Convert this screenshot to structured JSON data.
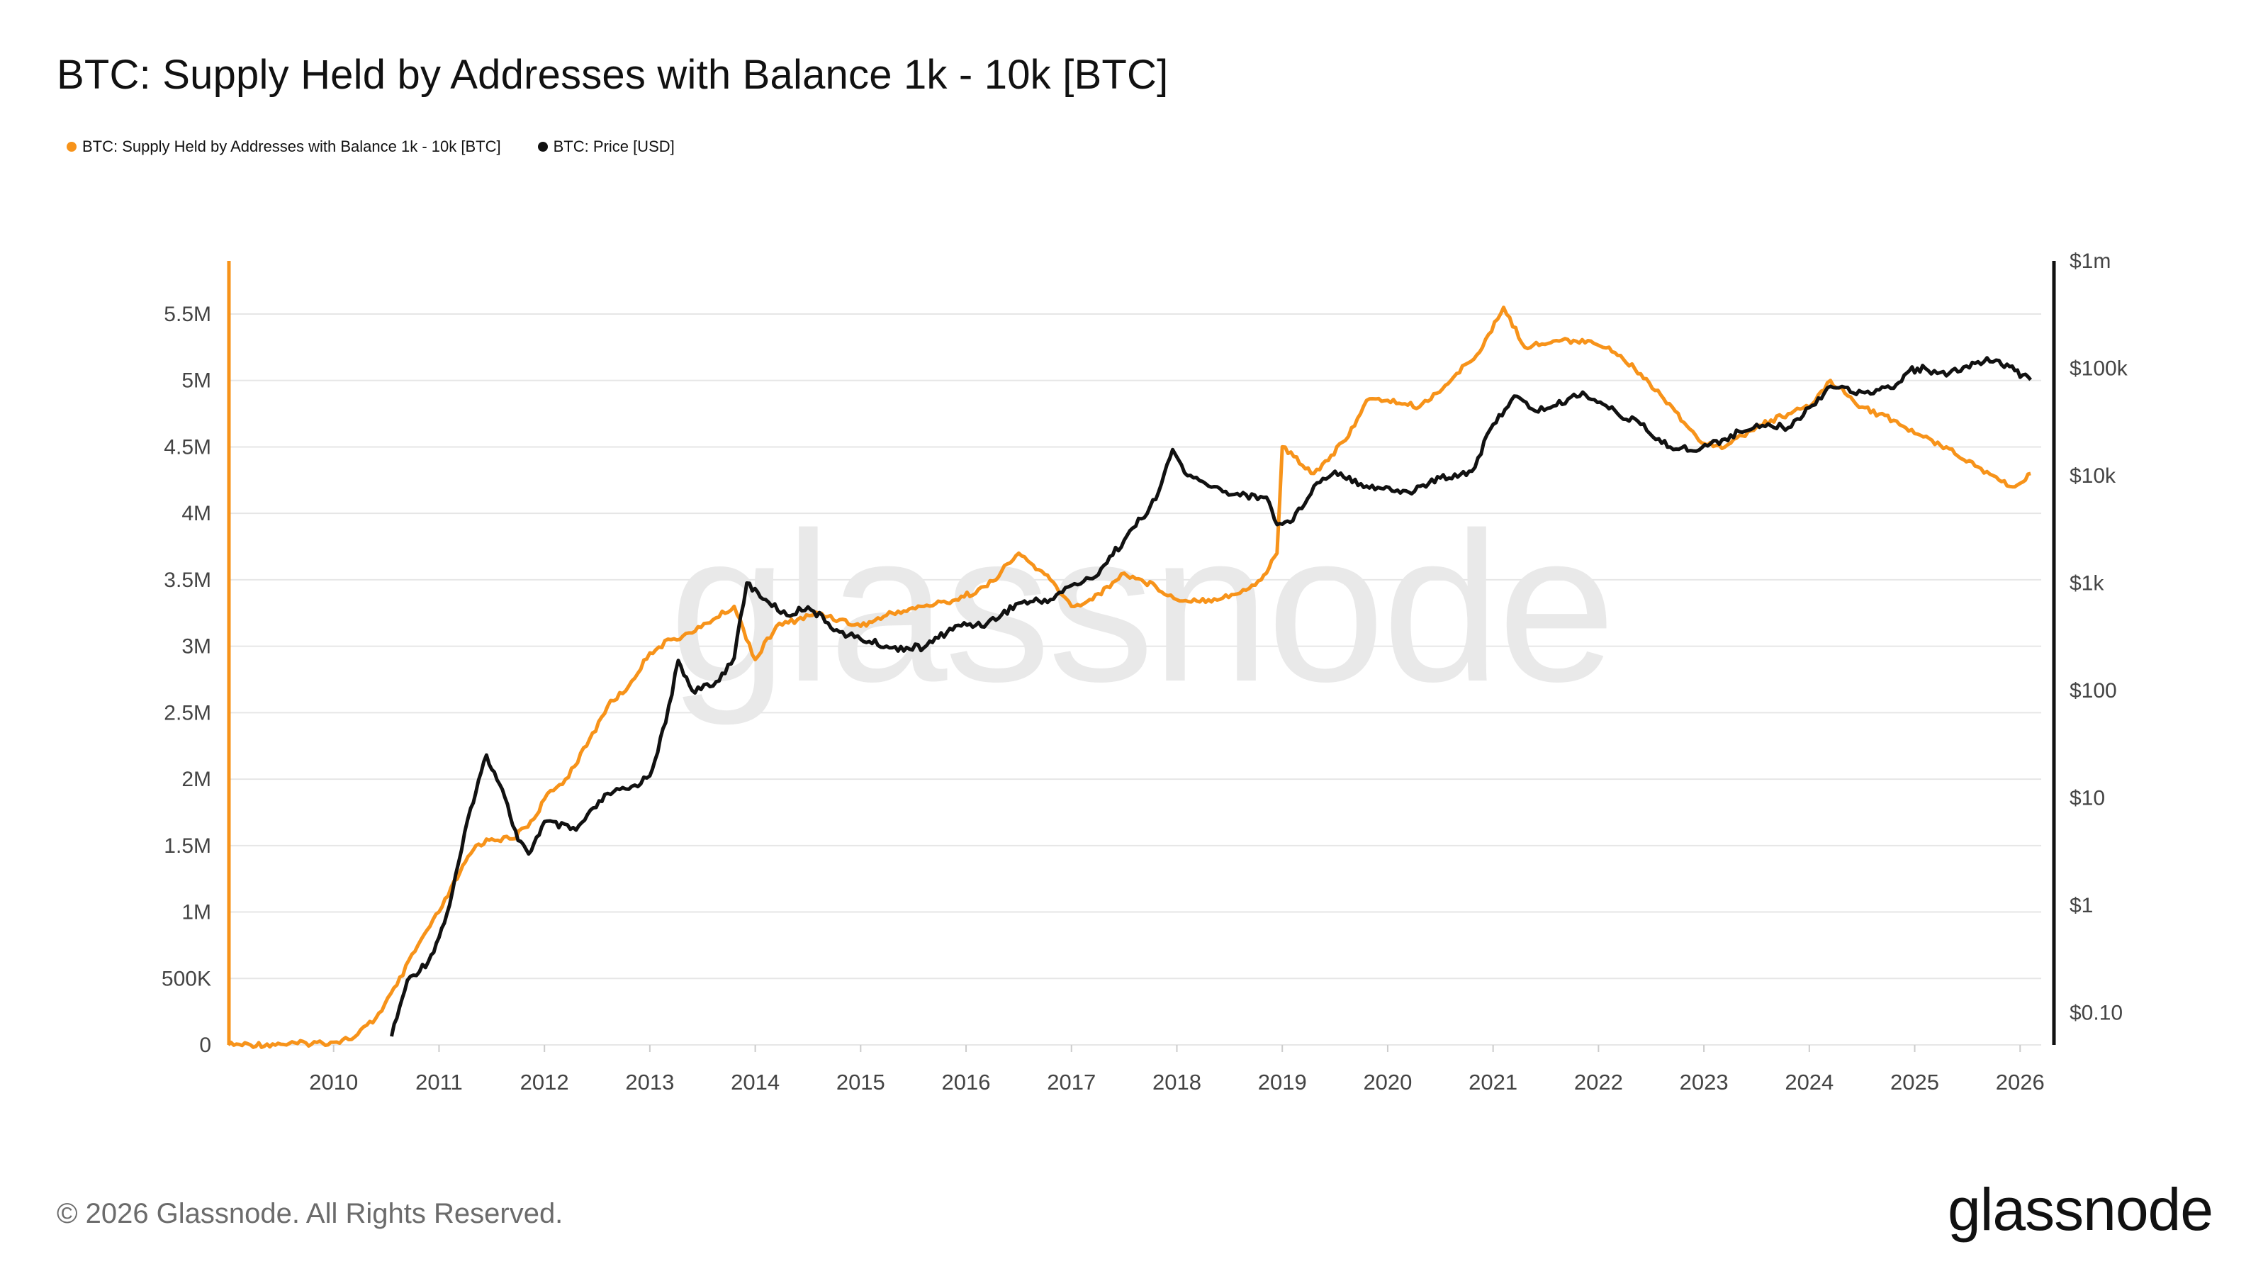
{
  "header": {
    "title": "BTC: Supply Held by Addresses with Balance 1k - 10k [BTC]"
  },
  "legend": {
    "items": [
      {
        "label": "BTC: Supply Held by Addresses with Balance 1k - 10k [BTC]",
        "color": "#f7931a"
      },
      {
        "label": "BTC: Price [USD]",
        "color": "#111111"
      }
    ]
  },
  "watermark": "glassnode",
  "footer": {
    "copyright": "© 2026 Glassnode. All Rights Reserved.",
    "brand": "glassnode"
  },
  "chart_data": {
    "type": "line",
    "title": "BTC: Supply Held by Addresses with Balance 1k - 10k [BTC]",
    "grid": true,
    "legend_position": "top-left",
    "x_ticks": [
      "2010",
      "2011",
      "2012",
      "2013",
      "2014",
      "2015",
      "2016",
      "2017",
      "2018",
      "2019",
      "2020",
      "2021",
      "2022",
      "2023",
      "2024",
      "2025",
      "2026"
    ],
    "x_range": [
      2009.0,
      2026.2
    ],
    "y_left": {
      "scale": "linear",
      "range": [
        0,
        5900000
      ],
      "ticks": [
        0,
        500000,
        1000000,
        1500000,
        2000000,
        2500000,
        3000000,
        3500000,
        4000000,
        4500000,
        5000000,
        5500000
      ],
      "tick_labels": [
        "0",
        "500K",
        "1M",
        "1.5M",
        "2M",
        "2.5M",
        "3M",
        "3.5M",
        "4M",
        "4.5M",
        "5M",
        "5.5M"
      ]
    },
    "y_right": {
      "scale": "log",
      "range": [
        0.05,
        1000000
      ],
      "ticks": [
        0.1,
        1,
        10,
        100,
        1000,
        10000,
        100000,
        1000000
      ],
      "tick_labels": [
        "$0.10",
        "$1",
        "$10",
        "$100",
        "$1k",
        "$10k",
        "$100k",
        "$1m"
      ]
    },
    "series": [
      {
        "name": "BTC: Supply Held by Addresses with Balance 1k - 10k [BTC]",
        "color": "#f7931a",
        "axis": "left",
        "x": [
          2009.0,
          2009.5,
          2010.0,
          2010.2,
          2010.4,
          2010.6,
          2010.8,
          2011.0,
          2011.2,
          2011.35,
          2011.5,
          2011.7,
          2011.9,
          2012.0,
          2012.2,
          2012.4,
          2012.6,
          2012.8,
          2013.0,
          2013.2,
          2013.4,
          2013.6,
          2013.8,
          2014.0,
          2014.2,
          2014.4,
          2014.6,
          2014.8,
          2015.0,
          2015.3,
          2015.6,
          2015.9,
          2016.2,
          2016.5,
          2016.8,
          2017.0,
          2017.2,
          2017.5,
          2017.8,
          2018.0,
          2018.3,
          2018.6,
          2018.8,
          2018.95,
          2019.0,
          2019.3,
          2019.6,
          2019.8,
          2020.0,
          2020.3,
          2020.6,
          2020.9,
          2021.1,
          2021.3,
          2021.6,
          2021.9,
          2022.1,
          2022.4,
          2022.7,
          2022.95,
          2023.2,
          2023.5,
          2023.8,
          2024.0,
          2024.2,
          2024.5,
          2024.8,
          2025.0,
          2025.3,
          2025.6,
          2025.8,
          2025.95,
          2026.05,
          2026.1
        ],
        "y": [
          0,
          5000,
          20000,
          60000,
          200000,
          450000,
          750000,
          1000000,
          1300000,
          1500000,
          1550000,
          1550000,
          1700000,
          1850000,
          2000000,
          2250000,
          2550000,
          2700000,
          2950000,
          3050000,
          3100000,
          3200000,
          3300000,
          2900000,
          3150000,
          3200000,
          3250000,
          3200000,
          3150000,
          3250000,
          3300000,
          3350000,
          3450000,
          3700000,
          3500000,
          3300000,
          3350000,
          3550000,
          3450000,
          3350000,
          3350000,
          3400000,
          3500000,
          3700000,
          4500000,
          4300000,
          4550000,
          4850000,
          4850000,
          4800000,
          5000000,
          5250000,
          5550000,
          5250000,
          5300000,
          5300000,
          5250000,
          5050000,
          4800000,
          4550000,
          4500000,
          4650000,
          4750000,
          4800000,
          5000000,
          4800000,
          4700000,
          4600000,
          4500000,
          4350000,
          4250000,
          4200000,
          4250000,
          4300000
        ]
      },
      {
        "name": "BTC: Price [USD]",
        "color": "#111111",
        "axis": "right",
        "x": [
          2010.55,
          2010.7,
          2010.9,
          2011.0,
          2011.1,
          2011.3,
          2011.45,
          2011.6,
          2011.75,
          2011.85,
          2012.0,
          2012.3,
          2012.6,
          2012.8,
          2013.0,
          2013.15,
          2013.27,
          2013.4,
          2013.6,
          2013.8,
          2013.92,
          2014.1,
          2014.3,
          2014.5,
          2014.8,
          2015.0,
          2015.3,
          2015.6,
          2015.9,
          2016.2,
          2016.5,
          2016.8,
          2017.0,
          2017.2,
          2017.5,
          2017.8,
          2017.96,
          2018.1,
          2018.3,
          2018.6,
          2018.85,
          2018.95,
          2019.1,
          2019.3,
          2019.5,
          2019.8,
          2020.2,
          2020.5,
          2020.8,
          2021.0,
          2021.2,
          2021.4,
          2021.6,
          2021.85,
          2022.1,
          2022.4,
          2022.6,
          2022.9,
          2023.2,
          2023.5,
          2023.8,
          2024.0,
          2024.2,
          2024.5,
          2024.8,
          2024.95,
          2025.1,
          2025.3,
          2025.6,
          2025.8,
          2025.95,
          2026.1
        ],
        "y": [
          0.06,
          0.2,
          0.3,
          0.5,
          1,
          8,
          25,
          12,
          4,
          3,
          6,
          5,
          11,
          12,
          16,
          50,
          190,
          100,
          110,
          200,
          1000,
          700,
          500,
          600,
          350,
          300,
          250,
          250,
          400,
          420,
          650,
          700,
          950,
          1100,
          2500,
          6000,
          17500,
          10000,
          8000,
          6500,
          6300,
          3500,
          3800,
          8000,
          11000,
          8000,
          7000,
          9500,
          11000,
          30000,
          55000,
          40000,
          45000,
          60000,
          42000,
          30000,
          20000,
          17000,
          22000,
          30000,
          28000,
          43000,
          68000,
          60000,
          65000,
          95000,
          100000,
          85000,
          115000,
          118000,
          95000,
          78000
        ]
      }
    ]
  }
}
